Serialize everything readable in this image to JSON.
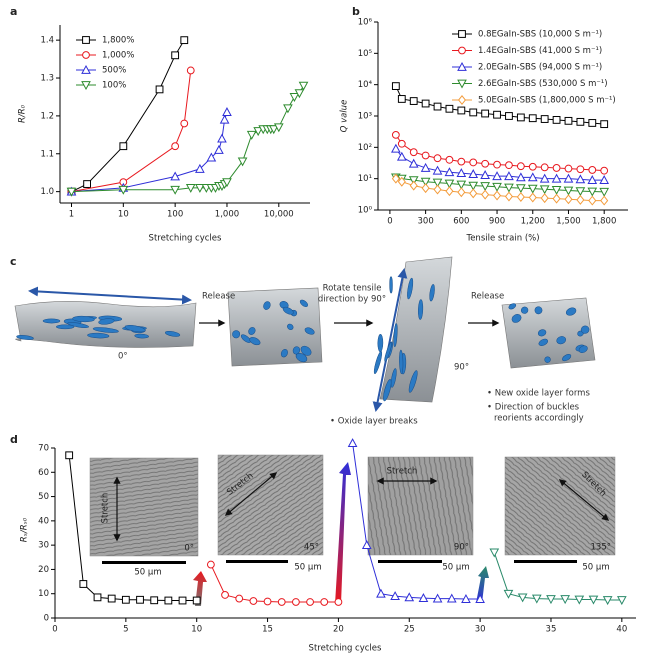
{
  "chart_data": [
    {
      "panel": "a",
      "type": "line",
      "xlabel": "Stretching cycles",
      "ylabel": "R/R₀",
      "xscale": "log",
      "xlim": [
        0.6,
        40000
      ],
      "xticks": [
        1,
        10,
        100,
        {
          "value": 1000,
          "label": "1,000"
        },
        {
          "value": 10000,
          "label": "10,000"
        }
      ],
      "ylim": [
        0.97,
        1.44
      ],
      "yticks": [
        {
          "value": 1,
          "label": "1.0"
        },
        1.1,
        1.2,
        1.3,
        1.4
      ],
      "legend": "upper left",
      "series": [
        {
          "name": "1,800%",
          "color": "#000000",
          "marker": "square",
          "x": [
            1,
            2,
            10,
            50,
            100,
            150
          ],
          "values": [
            1.0,
            1.02,
            1.12,
            1.27,
            1.36,
            1.4
          ]
        },
        {
          "name": "1,000%",
          "color": "#e8191f",
          "marker": "circle",
          "x": [
            1,
            10,
            100,
            150,
            200
          ],
          "values": [
            1.0,
            1.025,
            1.12,
            1.18,
            1.32
          ]
        },
        {
          "name": "500%",
          "color": "#2f2fd8",
          "marker": "triangle",
          "x": [
            1,
            10,
            100,
            300,
            500,
            700,
            800,
            900,
            1000
          ],
          "values": [
            1.0,
            1.01,
            1.04,
            1.06,
            1.09,
            1.11,
            1.14,
            1.19,
            1.21
          ]
        },
        {
          "name": "100%",
          "color": "#2e8b2e",
          "marker": "down-triangle",
          "x": [
            1,
            10,
            100,
            200,
            300,
            400,
            500,
            600,
            700,
            800,
            900,
            1000,
            2000,
            3000,
            4000,
            5000,
            6000,
            7000,
            8000,
            10000,
            15000,
            20000,
            25000,
            30000
          ],
          "values": [
            1.0,
            1.005,
            1.005,
            1.01,
            1.01,
            1.01,
            1.01,
            1.01,
            1.015,
            1.015,
            1.02,
            1.025,
            1.08,
            1.15,
            1.16,
            1.165,
            1.165,
            1.165,
            1.165,
            1.17,
            1.22,
            1.25,
            1.26,
            1.28
          ]
        }
      ]
    },
    {
      "panel": "b",
      "type": "line",
      "xlabel": "Tensile strain (%)",
      "ylabel": "Q value",
      "yscale": "log",
      "xlim": [
        -100,
        2000
      ],
      "xticks": [
        0,
        300,
        600,
        900,
        {
          "value": 1200,
          "label": "1,200"
        },
        {
          "value": 1500,
          "label": "1,500"
        },
        {
          "value": 1800,
          "label": "1,800"
        }
      ],
      "ylim": [
        1,
        1000000
      ],
      "yticks": [
        {
          "value": 1,
          "label": "10⁰"
        },
        {
          "value": 10,
          "label": "10¹"
        },
        {
          "value": 100,
          "label": "10²"
        },
        {
          "value": 1000,
          "label": "10³"
        },
        {
          "value": 10000,
          "label": "10⁴"
        },
        {
          "value": 100000,
          "label": "10⁵"
        },
        {
          "value": 1000000,
          "label": "10⁶"
        }
      ],
      "legend": "upper right",
      "x": [
        50,
        100,
        200,
        300,
        400,
        500,
        600,
        700,
        800,
        900,
        1000,
        1100,
        1200,
        1300,
        1400,
        1500,
        1600,
        1700,
        1800
      ],
      "series": [
        {
          "name": "0.8EGaIn-SBS (10,000 S m⁻¹)",
          "color": "#000000",
          "marker": "square",
          "values": [
            9000,
            3500,
            3000,
            2500,
            2000,
            1700,
            1500,
            1300,
            1200,
            1100,
            1000,
            900,
            850,
            800,
            750,
            700,
            650,
            600,
            550
          ]
        },
        {
          "name": "1.4EGaIn-SBS (41,000 S m⁻¹)",
          "color": "#e8191f",
          "marker": "circle",
          "values": [
            250,
            130,
            70,
            55,
            45,
            40,
            35,
            33,
            30,
            28,
            27,
            25,
            24,
            23,
            22,
            21,
            20,
            19,
            18
          ]
        },
        {
          "name": "2.0EGaIn-SBS (94,000 S m⁻¹)",
          "color": "#2f2fd8",
          "marker": "triangle",
          "values": [
            90,
            50,
            30,
            22,
            18,
            16,
            15,
            14,
            13,
            12,
            12,
            11,
            11,
            10,
            10,
            10,
            9.5,
            9,
            9
          ]
        },
        {
          "name": "2.6EGaIn-SBS (530,000 S m⁻¹)",
          "color": "#2e8b2e",
          "marker": "down-triangle",
          "values": [
            11,
            10,
            9,
            8,
            7.5,
            7,
            6.5,
            6,
            5.8,
            5.5,
            5.2,
            5,
            4.8,
            4.6,
            4.4,
            4.2,
            4,
            3.9,
            3.8
          ]
        },
        {
          "name": "5.0EGaIn-SBS (1,800,000 S m⁻¹)",
          "color": "#f39c3c",
          "marker": "diamond",
          "values": [
            10,
            8,
            6,
            5,
            4.5,
            4,
            3.7,
            3.4,
            3.1,
            2.9,
            2.7,
            2.6,
            2.5,
            2.4,
            2.3,
            2.2,
            2.1,
            2,
            2
          ]
        }
      ]
    },
    {
      "panel": "d",
      "type": "line",
      "xlabel": "Stretching cycles",
      "ylabel": "Rₛ/Rₛ₀",
      "xlim": [
        0,
        41
      ],
      "xticks": [
        0,
        5,
        10,
        15,
        20,
        25,
        30,
        35,
        40
      ],
      "ylim": [
        0,
        70
      ],
      "yticks": [
        0,
        10,
        20,
        30,
        40,
        50,
        60,
        70
      ],
      "series": [
        {
          "color": "#000000",
          "marker": "square",
          "x": [
            1,
            2,
            3,
            4,
            5,
            6,
            7,
            8,
            9,
            10
          ],
          "values": [
            67,
            14,
            8.5,
            8,
            7.5,
            7.5,
            7.3,
            7.2,
            7.2,
            7.2
          ]
        },
        {
          "color": "#e8191f",
          "marker": "circle",
          "x": [
            11,
            12,
            13,
            14,
            15,
            16,
            17,
            18,
            19,
            20
          ],
          "values": [
            22,
            9.5,
            8,
            7,
            6.8,
            6.6,
            6.6,
            6.6,
            6.6,
            6.6
          ]
        },
        {
          "color": "#2f2fd8",
          "marker": "triangle",
          "x": [
            21,
            22,
            23,
            24,
            25,
            26,
            27,
            28,
            29,
            30
          ],
          "values": [
            72,
            30,
            10,
            9,
            8.5,
            8.2,
            8,
            8,
            7.8,
            7.8
          ]
        },
        {
          "color": "#2a8a6a",
          "marker": "down-triangle",
          "x": [
            31,
            32,
            33,
            34,
            35,
            36,
            37,
            38,
            39,
            40
          ],
          "values": [
            27,
            10,
            8.5,
            8,
            7.8,
            7.8,
            7.6,
            7.6,
            7.4,
            7.4
          ]
        }
      ],
      "insets": [
        {
          "stretch": "Stretch",
          "angle": "0°",
          "scale": "50 μm"
        },
        {
          "stretch": "Stretch",
          "angle": "45°",
          "scale": "50 μm"
        },
        {
          "stretch": "Stretch",
          "angle": "90°",
          "scale": "50 μm"
        },
        {
          "stretch": "Stretch",
          "angle": "135°",
          "scale": "50 μm"
        }
      ]
    }
  ],
  "diagram_c": {
    "panel": "c",
    "arrow_1": "Release",
    "arrow_2": [
      "Rotate tensile",
      "direction by 90°"
    ],
    "arrow_3": "Release",
    "angle_1": "0°",
    "angle_2": "90°",
    "note_1": "• Oxide layer breaks",
    "note_2": [
      "• New oxide layer forms",
      "• Direction of buckles",
      "reorients accordingly"
    ]
  }
}
